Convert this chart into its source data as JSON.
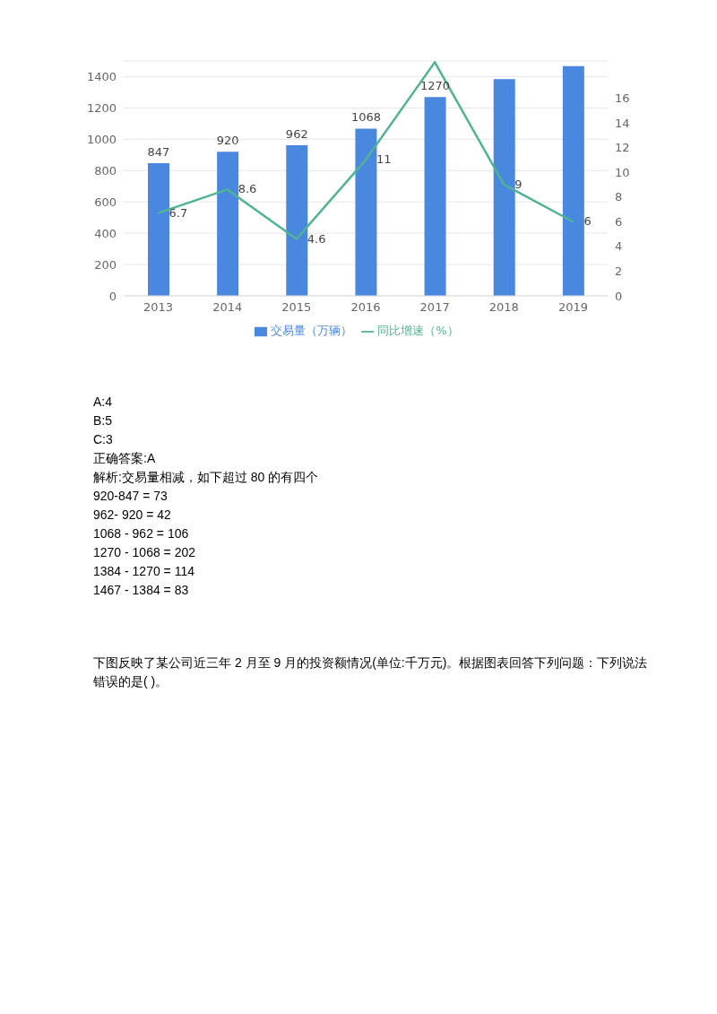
{
  "chart_data": {
    "type": "bar",
    "categories": [
      "2013",
      "2014",
      "2015",
      "2016",
      "2017",
      "2018",
      "2019"
    ],
    "series": [
      {
        "name": "交易量（万辆）",
        "color": "#4a88e0",
        "values": [
          847,
          920,
          962,
          1068,
          1270,
          1384,
          1467
        ],
        "value_labels": [
          "847",
          "920",
          "962",
          "1068",
          "1270",
          null,
          null
        ]
      },
      {
        "name": "同比增速（%）",
        "type": "line",
        "axis": "y2",
        "color": "#4fb394",
        "values": [
          6.7,
          8.6,
          4.6,
          11,
          18.9,
          9,
          6
        ],
        "value_labels": [
          "6.7",
          "8.6",
          "4.6",
          "11",
          null,
          "9",
          "6"
        ]
      }
    ],
    "ylim": [
      0,
      1500
    ],
    "yticks": [
      0,
      200,
      400,
      600,
      800,
      1000,
      1200,
      1400
    ],
    "y2lim": [
      0,
      19
    ],
    "y2ticks": [
      0,
      2,
      4,
      6,
      8,
      10,
      12,
      14,
      16
    ],
    "grid": "y",
    "legend": "bottom",
    "marker": "none",
    "annotations": [
      "A:4",
      "B:5",
      "C:3",
      "正确答案:A",
      "解析:交易量相减，如下超过 80 的有四个",
      "920-847 = 73",
      "962- 920 = 42",
      "1068 - 962 = 106",
      "1270 - 1068 = 202",
      "1384 - 1270 = 114",
      "1467 - 1384 = 83",
      "下图反映了某公司近三年 2 月至 9 月的投资额情况(单位:千万元)。根据图表回答下列问题：下列说法错误的是( )。"
    ]
  }
}
